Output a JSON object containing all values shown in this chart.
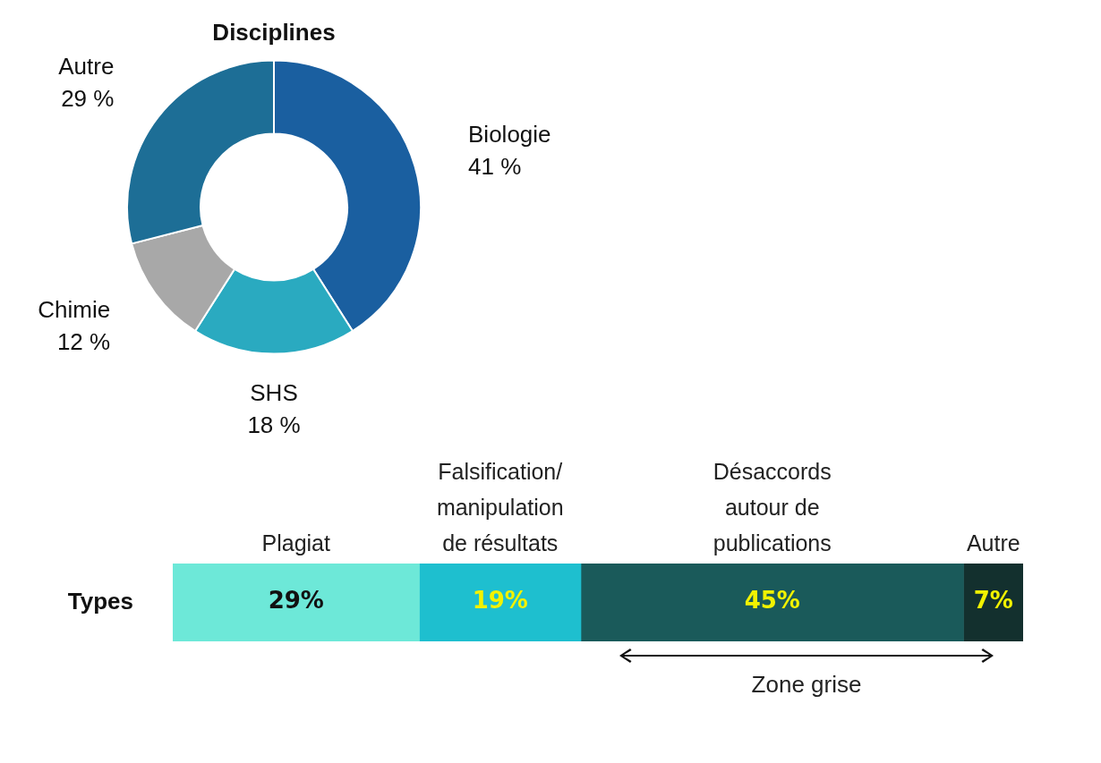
{
  "chart_data": [
    {
      "type": "donut",
      "title": "Disciplines",
      "categories": [
        "Biologie",
        "SHS",
        "Chimie",
        "Autre"
      ],
      "values": [
        41,
        18,
        12,
        29
      ],
      "value_labels": [
        "41 %",
        "18 %",
        "12 %",
        "29 %"
      ],
      "colors": [
        "#1a5fa0",
        "#2aaac0",
        "#a8a8a8",
        "#1d6e96"
      ],
      "legend": false
    },
    {
      "type": "bar",
      "orientation": "horizontal",
      "stacked": true,
      "categories": [
        "Types"
      ],
      "legend": false,
      "annotations": [
        "Zone grise"
      ],
      "series": [
        {
          "name": "Plagiat",
          "color": "#6de8d8",
          "values": [
            29
          ],
          "value_labels": [
            "29%"
          ]
        },
        {
          "name": "Falsification/ manipulation de résultats",
          "color": "#1ebfcf",
          "values": [
            19
          ],
          "value_labels": [
            "19%"
          ]
        },
        {
          "name": "Désaccords autour de publications",
          "color": "#1a5a5a",
          "values": [
            45
          ],
          "value_labels": [
            "45%"
          ]
        },
        {
          "name": "Autre",
          "color": "#13302e",
          "values": [
            7
          ],
          "value_labels": [
            "7%"
          ]
        }
      ]
    }
  ]
}
